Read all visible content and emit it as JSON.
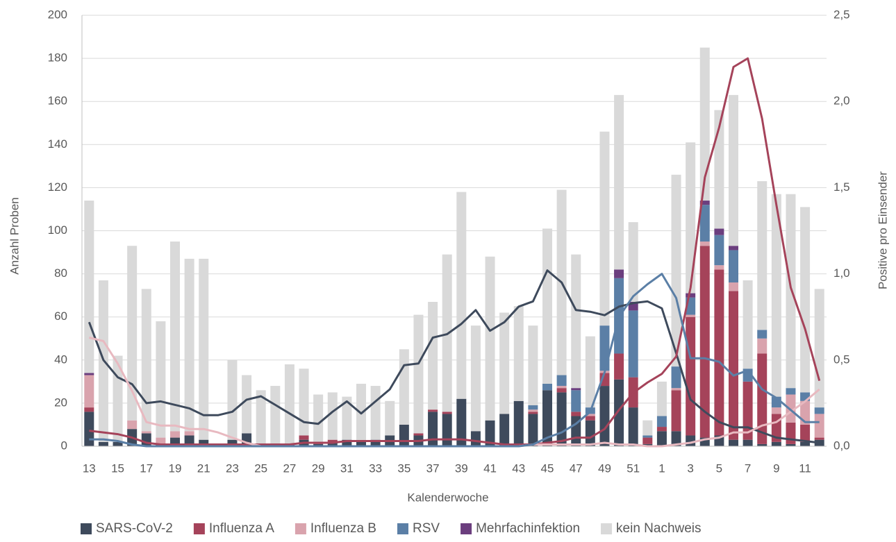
{
  "chart_data": {
    "type": "bar-line",
    "y_axis_label": "Anzahl Proben",
    "y2_axis_label": "Positive pro Einsender",
    "x_axis_label": "Kalenderwoche",
    "categories": [
      "13",
      null,
      "15",
      null,
      "17",
      null,
      "19",
      null,
      "21",
      null,
      "23",
      null,
      "25",
      null,
      "27",
      null,
      "29",
      null,
      "31",
      null,
      "33",
      null,
      "35",
      null,
      "37",
      null,
      "39",
      null,
      "41",
      null,
      "43",
      null,
      "45",
      null,
      "47",
      null,
      "49",
      null,
      "51",
      null,
      "1",
      null,
      "3",
      null,
      "5",
      null,
      "7",
      null,
      "9",
      null,
      "11",
      null
    ],
    "ylim": [
      0,
      200
    ],
    "yticks": [
      0,
      20,
      40,
      60,
      80,
      100,
      120,
      140,
      160,
      180,
      200
    ],
    "y2lim": [
      0,
      2.5
    ],
    "y2ticks": [
      {
        "value": 0,
        "label": "0,0"
      },
      {
        "value": 0.5,
        "label": "0,5"
      },
      {
        "value": 1,
        "label": "1,0"
      },
      {
        "value": 1.5,
        "label": "1,5"
      },
      {
        "value": 2,
        "label": "2,0"
      },
      {
        "value": 2.5,
        "label": "2,5"
      }
    ],
    "grid": true,
    "series": [
      {
        "name": "SARS-CoV-2",
        "color": "#3e4a5c",
        "values": [
          16,
          2,
          2,
          8,
          6,
          1,
          4,
          5,
          3,
          0,
          3,
          6,
          1,
          0,
          1,
          3,
          1,
          2,
          3,
          2,
          3,
          5,
          10,
          5,
          16,
          15,
          22,
          7,
          12,
          15,
          21,
          15,
          26,
          25,
          14,
          12,
          28,
          31,
          18,
          1,
          7,
          7,
          5,
          4,
          5,
          3,
          3,
          1,
          2,
          1,
          2,
          3
        ]
      },
      {
        "name": "Influenza A",
        "color": "#a5435a",
        "values": [
          2,
          0,
          0,
          0,
          0,
          0,
          0,
          0,
          0,
          0,
          0,
          0,
          0,
          0,
          0,
          2,
          1,
          1,
          0,
          0,
          0,
          0,
          0,
          1,
          1,
          1,
          0,
          0,
          0,
          0,
          0,
          1,
          0,
          2,
          2,
          2,
          6,
          12,
          14,
          3,
          2,
          19,
          55,
          89,
          77,
          69,
          27,
          42,
          13,
          10,
          8,
          1
        ]
      },
      {
        "name": "Influenza B",
        "color": "#d9a3ad",
        "values": [
          15,
          0,
          0,
          4,
          1,
          3,
          3,
          2,
          0,
          0,
          0,
          0,
          0,
          0,
          0,
          0,
          0,
          0,
          0,
          0,
          0,
          0,
          0,
          0,
          0,
          0,
          0,
          0,
          0,
          0,
          0,
          1,
          0,
          1,
          0,
          1,
          1,
          0,
          0,
          0,
          0,
          1,
          1,
          2,
          2,
          4,
          0,
          7,
          3,
          13,
          11,
          11
        ]
      },
      {
        "name": "RSV",
        "color": "#5b7fa6",
        "values": [
          0,
          0,
          0,
          0,
          0,
          0,
          0,
          0,
          0,
          0,
          0,
          0,
          0,
          0,
          0,
          0,
          0,
          0,
          0,
          0,
          0,
          0,
          0,
          0,
          0,
          0,
          0,
          0,
          0,
          0,
          0,
          2,
          3,
          5,
          10,
          3,
          21,
          35,
          31,
          1,
          5,
          10,
          8,
          17,
          14,
          15,
          6,
          4,
          5,
          3,
          4,
          3
        ]
      },
      {
        "name": "Mehrfachinfektion",
        "color": "#6b3e7e",
        "values": [
          1,
          0,
          0,
          0,
          0,
          0,
          0,
          0,
          0,
          0,
          0,
          0,
          0,
          0,
          0,
          0,
          0,
          0,
          0,
          0,
          0,
          0,
          0,
          0,
          0,
          0,
          0,
          0,
          0,
          0,
          0,
          0,
          0,
          0,
          1,
          0,
          0,
          4,
          4,
          0,
          0,
          0,
          2,
          2,
          3,
          2,
          0,
          0,
          0,
          0,
          0,
          0
        ]
      },
      {
        "name": "kein Nachweis",
        "color": "#d9d9d9",
        "values": [
          80,
          75,
          40,
          81,
          66,
          54,
          88,
          80,
          84,
          0,
          37,
          27,
          25,
          28,
          37,
          31,
          22,
          22,
          20,
          27,
          25,
          16,
          35,
          55,
          50,
          73,
          96,
          49,
          76,
          47,
          44,
          37,
          72,
          86,
          62,
          33,
          90,
          81,
          37,
          7,
          16,
          89,
          70,
          71,
          55,
          70,
          41,
          69,
          94,
          90,
          86,
          55
        ]
      }
    ],
    "lines": [
      {
        "color": "#3e4a5c",
        "axis": "y2",
        "values": [
          0.72,
          0.5,
          0.4,
          0.36,
          0.25,
          0.26,
          0.24,
          0.22,
          0.18,
          0.18,
          0.2,
          0.27,
          0.29,
          0.24,
          0.19,
          0.14,
          0.13,
          0.2,
          0.26,
          0.19,
          0.26,
          0.33,
          0.47,
          0.48,
          0.63,
          0.65,
          0.71,
          0.79,
          0.67,
          0.72,
          0.81,
          0.84,
          1.02,
          0.95,
          0.79,
          0.78,
          0.76,
          0.81,
          0.83,
          0.84,
          0.8,
          0.54,
          0.27,
          0.2,
          0.14,
          0.11,
          0.11,
          0.08,
          0.05,
          0.04,
          0.03,
          0.02
        ]
      },
      {
        "color": "#a5435a",
        "axis": "y2",
        "values": [
          0.09,
          0.08,
          0.07,
          0.05,
          0.02,
          0.01,
          0.01,
          0.01,
          0.01,
          0.01,
          0.01,
          0.01,
          0.01,
          0.01,
          0.01,
          0.02,
          0.02,
          0.02,
          0.03,
          0.03,
          0.03,
          0.03,
          0.03,
          0.03,
          0.04,
          0.04,
          0.04,
          0.03,
          0.02,
          0.01,
          0.01,
          0.01,
          0.02,
          0.03,
          0.05,
          0.05,
          0.1,
          0.21,
          0.31,
          0.37,
          0.42,
          0.52,
          0.92,
          1.56,
          1.85,
          2.2,
          2.25,
          1.9,
          1.4,
          0.92,
          0.68,
          0.38
        ]
      },
      {
        "color": "#e8b9c0",
        "axis": "y2",
        "values": [
          0.63,
          0.61,
          0.48,
          0.32,
          0.14,
          0.12,
          0.12,
          0.1,
          0.1,
          0.08,
          0.05,
          0.02,
          0,
          0,
          0,
          0,
          0,
          0,
          0,
          0,
          0,
          0,
          0,
          0,
          0,
          0,
          0,
          0,
          0,
          0,
          0,
          0.01,
          0.01,
          0.01,
          0.01,
          0.01,
          0.02,
          0.01,
          0.01,
          0,
          0,
          0.01,
          0.02,
          0.04,
          0.05,
          0.08,
          0.08,
          0.12,
          0.14,
          0.2,
          0.26,
          0.33
        ]
      },
      {
        "color": "#5b7fa6",
        "axis": "y2",
        "values": [
          0.04,
          0.04,
          0.03,
          0.01,
          0,
          0,
          0,
          0,
          0,
          0,
          0,
          0,
          0,
          0,
          0,
          0,
          0,
          0,
          0,
          0,
          0,
          0,
          0,
          0,
          0,
          0,
          0,
          0,
          0,
          0,
          0,
          0.01,
          0.05,
          0.08,
          0.13,
          0.2,
          0.43,
          0.75,
          0.87,
          0.94,
          1,
          0.86,
          0.51,
          0.51,
          0.49,
          0.41,
          0.44,
          0.33,
          0.28,
          0.21,
          0.14,
          0.14
        ]
      }
    ]
  }
}
